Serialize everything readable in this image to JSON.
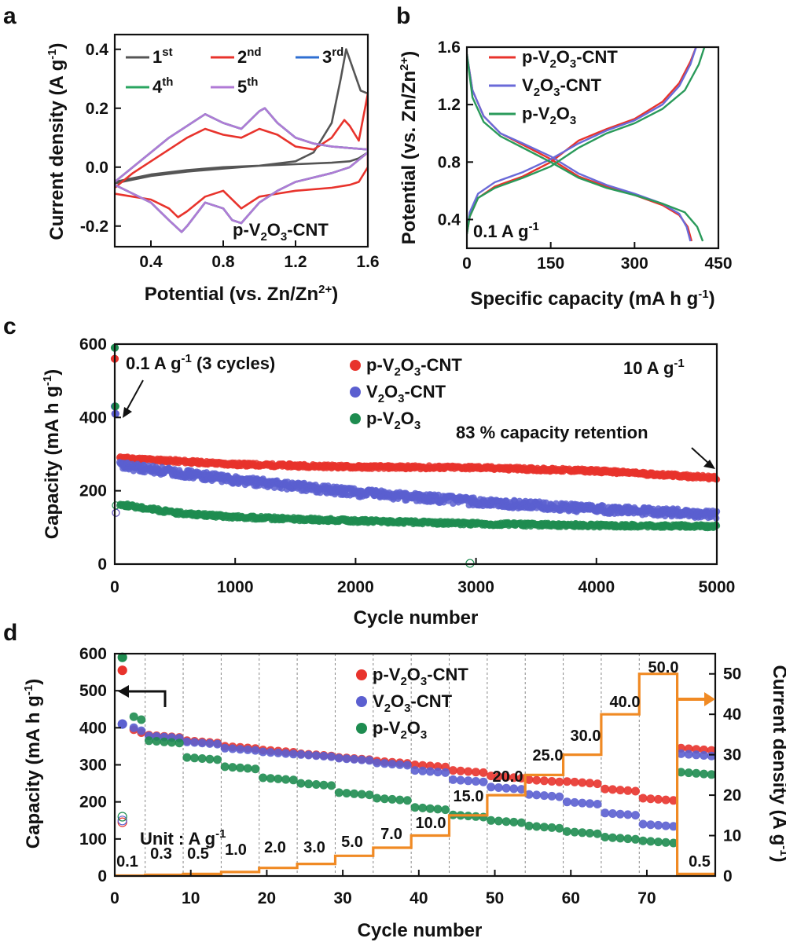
{
  "chart_data": [
    {
      "panel": "a",
      "type": "line",
      "title": "",
      "xlabel": "Potential (vs. Zn/Zn2+)",
      "ylabel": "Current density (A g-1)",
      "xlim": [
        0.2,
        1.6
      ],
      "ylim": [
        -0.27,
        0.45
      ],
      "xticks": [
        "0.4",
        "0.8",
        "1.2",
        "1.6"
      ],
      "yticks": [
        "-0.2",
        "0.0",
        "0.2",
        "0.4"
      ],
      "annotation": "p-V2O3-CNT",
      "series": [
        {
          "name": "1st",
          "sup": "st",
          "color": "#555555",
          "x": [
            0.2,
            0.4,
            0.6,
            0.8,
            1.0,
            1.2,
            1.3,
            1.4,
            1.45,
            1.48,
            1.52,
            1.56,
            1.6,
            1.6,
            1.55,
            1.5,
            1.4,
            1.2,
            1.0,
            0.8,
            0.6,
            0.4,
            0.2
          ],
          "y": [
            -0.055,
            -0.03,
            -0.015,
            -0.005,
            0.005,
            0.02,
            0.05,
            0.15,
            0.3,
            0.4,
            0.33,
            0.26,
            0.25,
            0.05,
            0.03,
            0.02,
            0.015,
            0.01,
            0.005,
            0.0,
            -0.01,
            -0.025,
            -0.05
          ]
        },
        {
          "name": "2nd",
          "sup": "nd",
          "color": "#e8332c",
          "x": [
            0.2,
            0.3,
            0.4,
            0.5,
            0.6,
            0.7,
            0.8,
            0.9,
            1.0,
            1.1,
            1.2,
            1.3,
            1.4,
            1.47,
            1.5,
            1.55,
            1.6,
            1.6,
            1.55,
            1.5,
            1.4,
            1.2,
            1.1,
            1.0,
            0.9,
            0.8,
            0.7,
            0.6,
            0.55,
            0.5,
            0.4,
            0.3,
            0.2
          ],
          "y": [
            -0.07,
            -0.02,
            0.02,
            0.06,
            0.1,
            0.13,
            0.11,
            0.1,
            0.13,
            0.11,
            0.07,
            0.06,
            0.1,
            0.16,
            0.14,
            0.09,
            0.25,
            0.0,
            -0.05,
            -0.06,
            -0.07,
            -0.08,
            -0.09,
            -0.1,
            -0.14,
            -0.08,
            -0.1,
            -0.15,
            -0.17,
            -0.14,
            -0.11,
            -0.1,
            -0.09
          ]
        },
        {
          "name": "3rd",
          "sup": "rd",
          "color": "#2f6fd2",
          "x": [
            0.2,
            0.3,
            0.4,
            0.5,
            0.6,
            0.7,
            0.8,
            0.9,
            1.0,
            1.03,
            1.1,
            1.2,
            1.3,
            1.4,
            1.5,
            1.6,
            1.6,
            1.5,
            1.4,
            1.2,
            1.1,
            1.0,
            0.9,
            0.85,
            0.8,
            0.7,
            0.6,
            0.57,
            0.5,
            0.4,
            0.3,
            0.2
          ],
          "y": [
            -0.05,
            0.0,
            0.05,
            0.1,
            0.14,
            0.18,
            0.15,
            0.13,
            0.19,
            0.2,
            0.15,
            0.1,
            0.08,
            0.07,
            0.065,
            0.06,
            0.05,
            0.0,
            -0.02,
            -0.05,
            -0.08,
            -0.12,
            -0.19,
            -0.18,
            -0.14,
            -0.12,
            -0.2,
            -0.22,
            -0.18,
            -0.12,
            -0.09,
            -0.06
          ]
        },
        {
          "name": "4th",
          "sup": "th",
          "color": "#2aa560",
          "x": [
            0.2,
            0.3,
            0.4,
            0.5,
            0.6,
            0.7,
            0.8,
            0.9,
            1.0,
            1.03,
            1.1,
            1.2,
            1.3,
            1.4,
            1.5,
            1.6,
            1.6,
            1.5,
            1.4,
            1.2,
            1.1,
            1.0,
            0.9,
            0.85,
            0.8,
            0.7,
            0.6,
            0.57,
            0.5,
            0.4,
            0.3,
            0.2
          ],
          "y": [
            -0.05,
            0.0,
            0.05,
            0.1,
            0.14,
            0.18,
            0.15,
            0.13,
            0.19,
            0.2,
            0.15,
            0.1,
            0.08,
            0.07,
            0.065,
            0.06,
            0.05,
            0.0,
            -0.02,
            -0.05,
            -0.08,
            -0.12,
            -0.19,
            -0.18,
            -0.14,
            -0.12,
            -0.2,
            -0.22,
            -0.18,
            -0.12,
            -0.09,
            -0.06
          ]
        },
        {
          "name": "5th",
          "sup": "th",
          "color": "#b07ad6",
          "x": [
            0.2,
            0.3,
            0.4,
            0.5,
            0.6,
            0.7,
            0.8,
            0.9,
            1.0,
            1.03,
            1.1,
            1.2,
            1.3,
            1.4,
            1.5,
            1.6,
            1.6,
            1.5,
            1.4,
            1.2,
            1.1,
            1.0,
            0.9,
            0.85,
            0.8,
            0.7,
            0.6,
            0.57,
            0.5,
            0.4,
            0.3,
            0.2
          ],
          "y": [
            -0.05,
            0.0,
            0.05,
            0.1,
            0.14,
            0.18,
            0.15,
            0.13,
            0.19,
            0.2,
            0.15,
            0.1,
            0.08,
            0.07,
            0.065,
            0.06,
            0.05,
            0.0,
            -0.02,
            -0.05,
            -0.08,
            -0.12,
            -0.19,
            -0.18,
            -0.14,
            -0.12,
            -0.2,
            -0.22,
            -0.18,
            -0.12,
            -0.09,
            -0.06
          ]
        }
      ]
    },
    {
      "panel": "b",
      "type": "line",
      "title": "",
      "xlabel": "Specific capacity (mA h g-1)",
      "ylabel": "Potential (vs. Zn/Zn2+)",
      "xlim": [
        0,
        450
      ],
      "ylim": [
        0.2,
        1.6
      ],
      "xticks": [
        "0",
        "150",
        "300",
        "450"
      ],
      "yticks": [
        "0.4",
        "0.8",
        "1.2",
        "1.6"
      ],
      "annotation": "0.1 A g-1",
      "series": [
        {
          "name": "p-V2O3-CNT",
          "color": "#e8332c",
          "discharge_x": [
            0,
            10,
            30,
            60,
            100,
            150,
            200,
            250,
            300,
            350,
            380,
            395,
            402
          ],
          "discharge_y": [
            1.55,
            1.3,
            1.12,
            1.0,
            0.92,
            0.82,
            0.7,
            0.63,
            0.57,
            0.5,
            0.43,
            0.35,
            0.25
          ],
          "charge_x": [
            0,
            5,
            20,
            50,
            100,
            150,
            200,
            250,
            300,
            350,
            380,
            400,
            410
          ],
          "charge_y": [
            0.3,
            0.42,
            0.55,
            0.63,
            0.7,
            0.8,
            0.95,
            1.03,
            1.1,
            1.22,
            1.35,
            1.5,
            1.6
          ]
        },
        {
          "name": "V2O3-CNT",
          "color": "#6a6ad8",
          "discharge_x": [
            0,
            10,
            30,
            60,
            100,
            150,
            200,
            250,
            300,
            350,
            380,
            393,
            400
          ],
          "discharge_y": [
            1.55,
            1.3,
            1.12,
            1.0,
            0.93,
            0.84,
            0.72,
            0.64,
            0.58,
            0.51,
            0.44,
            0.35,
            0.25
          ],
          "charge_x": [
            0,
            5,
            20,
            50,
            100,
            150,
            200,
            250,
            300,
            350,
            380,
            400,
            410
          ],
          "charge_y": [
            0.3,
            0.45,
            0.58,
            0.66,
            0.73,
            0.82,
            0.93,
            1.02,
            1.09,
            1.2,
            1.33,
            1.48,
            1.6
          ]
        },
        {
          "name": "p-V2O3",
          "color": "#2a9a5a",
          "discharge_x": [
            0,
            10,
            30,
            60,
            100,
            150,
            200,
            250,
            300,
            350,
            390,
            412,
            422
          ],
          "discharge_y": [
            1.55,
            1.25,
            1.08,
            0.98,
            0.9,
            0.8,
            0.69,
            0.62,
            0.57,
            0.51,
            0.45,
            0.35,
            0.25
          ],
          "charge_x": [
            0,
            5,
            20,
            50,
            100,
            150,
            200,
            250,
            300,
            350,
            390,
            415,
            425
          ],
          "charge_y": [
            0.3,
            0.42,
            0.55,
            0.62,
            0.69,
            0.77,
            0.9,
            1.0,
            1.07,
            1.17,
            1.3,
            1.48,
            1.6
          ]
        }
      ]
    },
    {
      "panel": "c",
      "type": "scatter",
      "title": "",
      "xlabel": "Cycle number",
      "ylabel": "Capacity (mA h g-1)",
      "xlim": [
        0,
        5000
      ],
      "ylim": [
        0,
        600
      ],
      "xticks": [
        "0",
        "1000",
        "2000",
        "3000",
        "4000",
        "5000"
      ],
      "yticks": [
        "0",
        "200",
        "400",
        "600"
      ],
      "annotations": [
        "0.1 A g-1 (3 cycles)",
        "10 A g-1",
        "83 % capacity retention"
      ],
      "series": [
        {
          "name": "p-V2O3-CNT",
          "color": "#e8332c",
          "legend_color": "#e8332c",
          "x": [
            3,
            0,
            1000,
            2000,
            3000,
            4000,
            5000
          ],
          "y": [
            560,
            290,
            272,
            265,
            263,
            254,
            235
          ],
          "initial": [
            560,
            410,
            140
          ]
        },
        {
          "name": "V2O3-CNT",
          "color": "#5b5fd0",
          "legend_color": "#5b5fd0",
          "x": [
            0,
            500,
            1000,
            2000,
            3000,
            4000,
            5000
          ],
          "y": [
            270,
            250,
            230,
            195,
            170,
            150,
            135
          ],
          "initial": [
            430,
            410,
            140
          ]
        },
        {
          "name": "p-V2O3",
          "color": "#1e8c50",
          "legend_color": "#1e8c50",
          "x": [
            0,
            500,
            1000,
            2000,
            3000,
            4000,
            5000
          ],
          "y": [
            165,
            140,
            128,
            118,
            110,
            105,
            103
          ],
          "initial": [
            590,
            430,
            160
          ]
        }
      ]
    },
    {
      "panel": "d",
      "type": "scatter",
      "title": "",
      "xlabel": "Cycle number",
      "ylabel": "Capacity (mA h g-1)",
      "y2label": "Current density (A g-1)",
      "xlim": [
        0,
        79
      ],
      "ylim": [
        0,
        600
      ],
      "y2lim": [
        0,
        55
      ],
      "xticks": [
        "0",
        "10",
        "20",
        "30",
        "40",
        "50",
        "60",
        "70"
      ],
      "yticks": [
        "0",
        "100",
        "200",
        "300",
        "400",
        "500",
        "600"
      ],
      "y2ticks": [
        "0",
        "10",
        "20",
        "30",
        "40",
        "50"
      ],
      "annotation": "Unit : A g-1",
      "rate_steps": [
        {
          "label": "0.1",
          "value": 0.1
        },
        {
          "label": "0.3",
          "value": 0.3
        },
        {
          "label": "0.5",
          "value": 0.5
        },
        {
          "label": "1.0",
          "value": 1.0
        },
        {
          "label": "2.0",
          "value": 2.0
        },
        {
          "label": "3.0",
          "value": 3.0
        },
        {
          "label": "5.0",
          "value": 5.0
        },
        {
          "label": "7.0",
          "value": 7.0
        },
        {
          "label": "10.0",
          "value": 10.0
        },
        {
          "label": "15.0",
          "value": 15.0
        },
        {
          "label": "20.0",
          "value": 20.0
        },
        {
          "label": "25.0",
          "value": 25.0
        },
        {
          "label": "30.0",
          "value": 30.0
        },
        {
          "label": "40.0",
          "value": 40.0
        },
        {
          "label": "50.0",
          "value": 50.0
        },
        {
          "label": "0.5",
          "value": 0.5
        }
      ],
      "series": [
        {
          "name": "p-V2O3-CNT",
          "color": "#e8332c",
          "step_values": [
            395,
            380,
            365,
            350,
            340,
            330,
            320,
            310,
            300,
            285,
            270,
            260,
            255,
            235,
            210,
            345
          ],
          "first": [
            555,
            145
          ]
        },
        {
          "name": "V2O3-CNT",
          "color": "#5b5fd0",
          "step_values": [
            400,
            378,
            362,
            345,
            335,
            328,
            318,
            305,
            285,
            260,
            240,
            220,
            200,
            170,
            140,
            330
          ],
          "first": [
            410,
            150
          ]
        },
        {
          "name": "p-V2O3",
          "color": "#1e8c50",
          "step_values": [
            430,
            365,
            320,
            295,
            265,
            250,
            225,
            210,
            185,
            165,
            150,
            135,
            120,
            105,
            95,
            280
          ],
          "first": [
            590,
            160
          ]
        }
      ]
    }
  ],
  "labels": {
    "a": "a",
    "b": "b",
    "c": "c",
    "d": "d",
    "a_xlabel": "Potential (vs. Zn/Zn",
    "a_xlabel_sup": "2+",
    "a_xlabel_end": ")",
    "a_ylabel_main": "Current density (A g",
    "a_ylabel_sup": "-1",
    "a_ylabel_end": ")",
    "a_note": "p-V",
    "a_note_sub1": "2",
    "a_note_mid": "O",
    "a_note_sub2": "3",
    "a_note_end": "-CNT",
    "b_xlabel": "Specific capacity (mA h g",
    "b_xlabel_sup": "-1",
    "b_xlabel_end": ")",
    "b_ylabel": "Potential (vs. Zn/Zn",
    "b_ylabel_sup": "2+",
    "b_ylabel_end": ")",
    "b_note": "0.1 A g",
    "b_note_sup": "-1",
    "c_xlabel": "Cycle number",
    "c_ylabel": "Capacity (mA h g",
    "c_ylabel_sup": "-1",
    "c_ylabel_end": ")",
    "c_note1": "0.1 A g",
    "c_note1_sup": "-1",
    "c_note1_end": " (3 cycles)",
    "c_note2": "10 A g",
    "c_note2_sup": "-1",
    "c_note3": "83 % capacity retention",
    "d_xlabel": "Cycle number",
    "d_ylabel": "Capacity (mA h g",
    "d_ylabel_sup": "-1",
    "d_ylabel_end": ")",
    "d_y2label": "Current density (A g",
    "d_y2label_sup": "-1",
    "d_y2label_end": ")",
    "d_unit": "Unit : A g",
    "d_unit_sup": "-1",
    "leg_p1": "p-V",
    "leg_sub2": "2",
    "leg_O": "O",
    "leg_sub3": "3",
    "leg_cnt": "-CNT",
    "leg_v": "V",
    "leg_p": "p-V"
  }
}
